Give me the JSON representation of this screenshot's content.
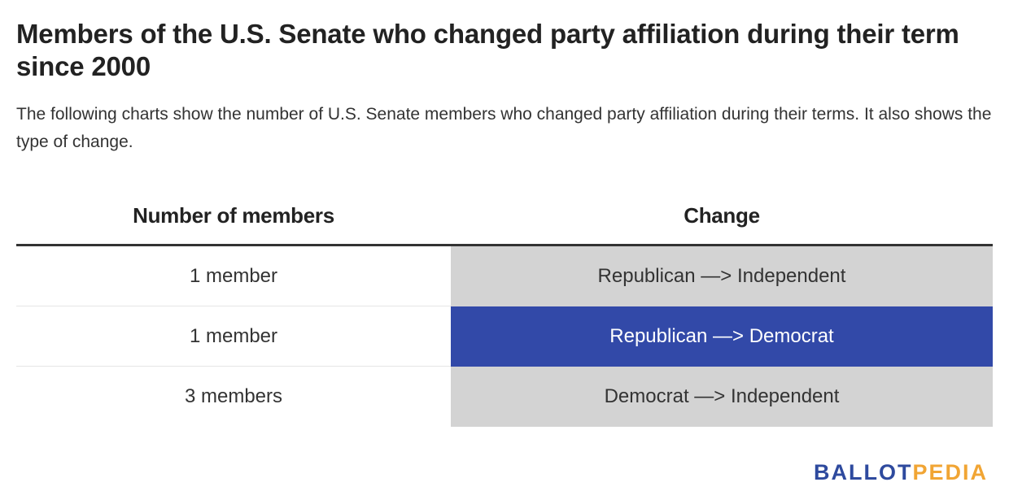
{
  "title": "Members of the U.S. Senate who changed party affiliation during their term since 2000",
  "subtitle": "The following charts show the number of U.S. Senate members who changed party affiliation during their terms. It also shows the type of change.",
  "chart_data": {
    "type": "table",
    "columns": [
      "Number of members",
      "Change"
    ],
    "rows": [
      {
        "count": "1 member",
        "change": "Republican —> Independent",
        "members": 1,
        "color": "#d3d3d3",
        "text_color": "#333333"
      },
      {
        "count": "1 member",
        "change": "Republican —> Democrat",
        "members": 1,
        "color": "#3249a8",
        "text_color": "#ffffff"
      },
      {
        "count": "3 members",
        "change": "Democrat —> Independent",
        "members": 3,
        "color": "#d3d3d3",
        "text_color": "#333333"
      }
    ]
  },
  "logo": {
    "part1": "BALLOT",
    "part2": "PEDIA",
    "color1": "#2e4a9e",
    "color2": "#f1a534"
  }
}
